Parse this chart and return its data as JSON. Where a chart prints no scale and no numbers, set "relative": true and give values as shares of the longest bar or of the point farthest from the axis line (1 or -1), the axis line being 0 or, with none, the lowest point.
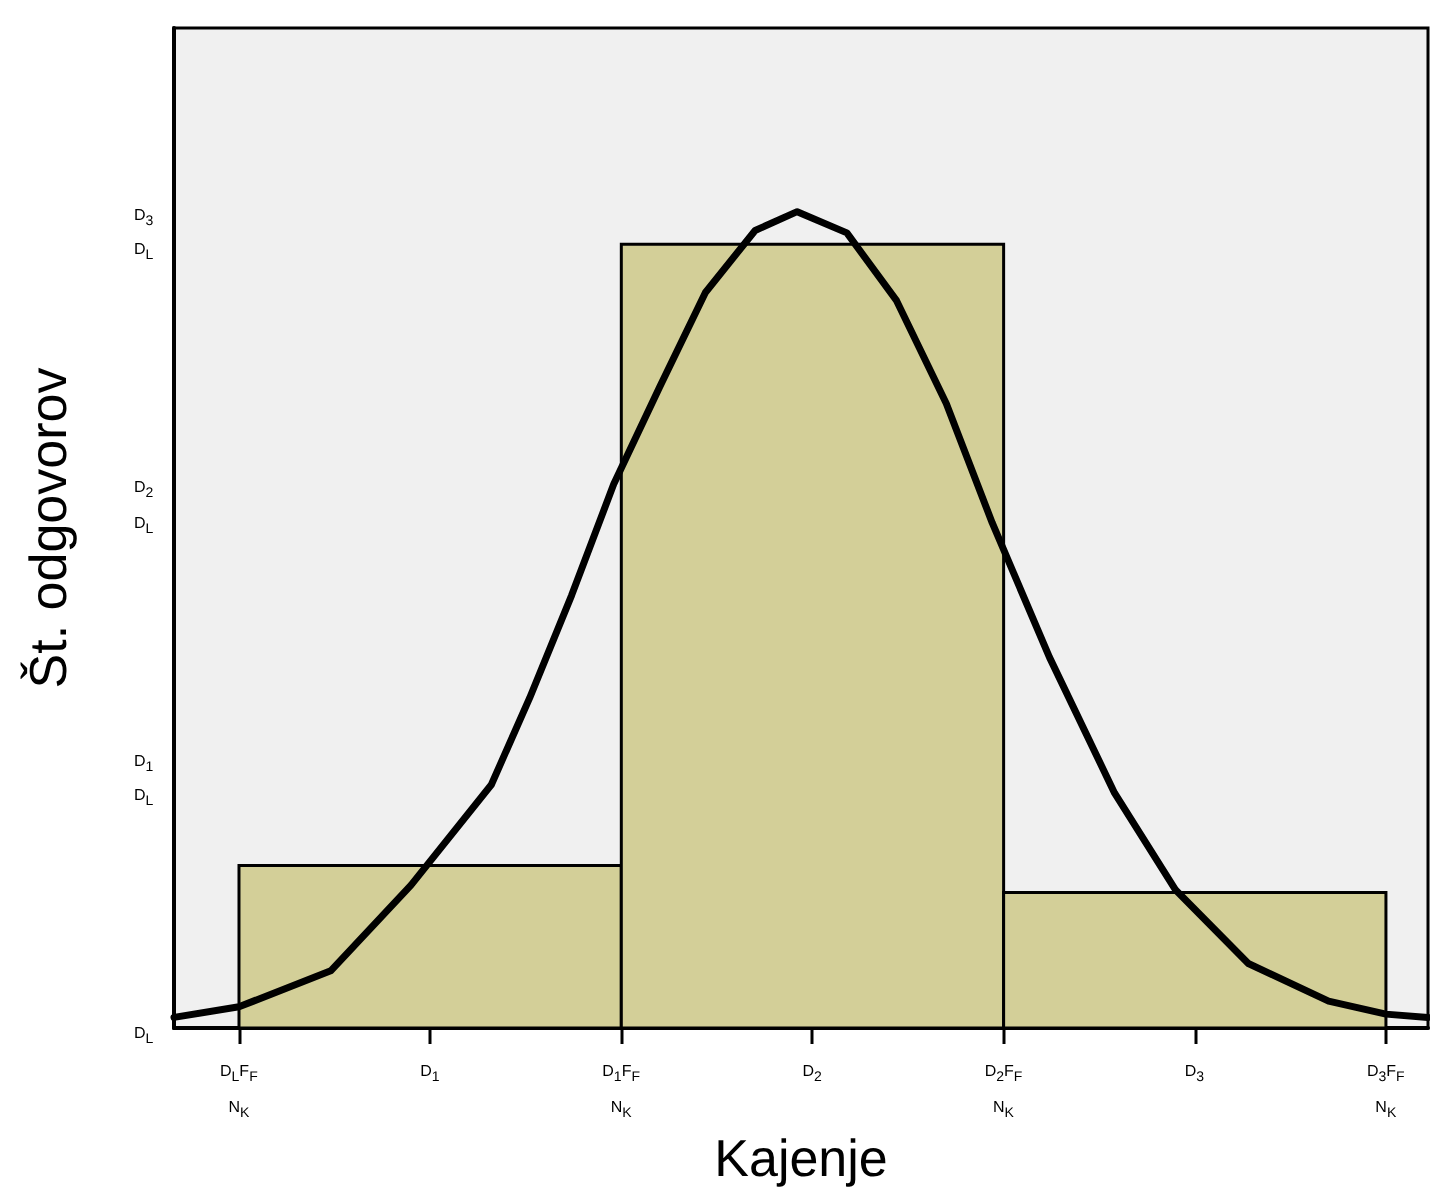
{
  "chart_data": {
    "type": "histogram",
    "xlabel": "Kajenje",
    "ylabel": "Št. odgovorov",
    "relative": true,
    "series": [
      {
        "bins": [
          0.5,
          1.5,
          2.5,
          3.5
        ],
        "values": [
          0.199,
          0.96,
          0.166
        ],
        "color": "#d3cf98"
      },
      {
        "type": "line",
        "color": "#000000",
        "x": [
          0.33,
          0.5,
          0.74,
          0.95,
          1.16,
          1.26,
          1.37,
          1.48,
          1.6,
          1.72,
          1.85,
          1.96,
          2.09,
          2.22,
          2.35,
          2.47,
          2.62,
          2.79,
          2.95,
          3.14,
          3.35,
          3.5,
          3.61
        ],
        "values": [
          0.013,
          0.026,
          0.07,
          0.175,
          0.298,
          0.404,
          0.53,
          0.666,
          0.785,
          0.901,
          0.977,
          1,
          0.974,
          0.891,
          0.765,
          0.619,
          0.454,
          0.288,
          0.169,
          0.079,
          0.033,
          0.017,
          0.013
        ]
      }
    ],
    "xlim": [
      0.33,
      3.61
    ],
    "xticks": [
      {
        "value": 0.5,
        "label": "D$_{L}$F$_{F}$\nN$_{K}$"
      },
      {
        "value": 1,
        "label": "D$_{1}$"
      },
      {
        "value": 1.5,
        "label": "D$_{1}$F$_{F}$\nN$_{K}$"
      },
      {
        "value": 2,
        "label": "D$_{2}$"
      },
      {
        "value": 2.5,
        "label": "D$_{2}$F$_{F}$\nN$_{K}$"
      },
      {
        "value": 3,
        "label": "D$_{3}$"
      },
      {
        "value": 3.5,
        "label": "D$_{3}$F$_{F}$\nN$_{K}$"
      }
    ],
    "annotations": [
      "D$_{L}$",
      "D$_{1}$\nD$_{L}$",
      "D$_{2}$\nD$_{L}$",
      "D$_{3}$\nD$_{L}$"
    ],
    "grid": false,
    "line_style": "solid",
    "marker": "none"
  }
}
